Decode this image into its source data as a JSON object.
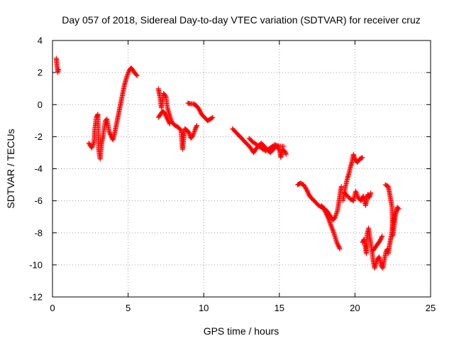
{
  "chart_data": {
    "type": "scatter",
    "title": "Day 057 of 2018, Sidereal Day-to-day VTEC variation (SDTVAR) for receiver cruz",
    "xlabel": "GPS time / hours",
    "ylabel": "SDTVAR / TECUs",
    "xlim": [
      0,
      25
    ],
    "ylim": [
      -12,
      4
    ],
    "grid": true,
    "legend": "none",
    "marker": "plus",
    "series_color": "#ff0000",
    "x_ticks": [
      0,
      5,
      10,
      15,
      20,
      25
    ],
    "x_tick_labels": [
      "0",
      "5",
      "10",
      "15",
      "20",
      "25"
    ],
    "y_ticks": [
      -12,
      -10,
      -8,
      -6,
      -4,
      -2,
      0,
      2,
      4
    ],
    "y_tick_labels": [
      "-12",
      "-10",
      "-8",
      "-6",
      "-4",
      "-2",
      "0",
      "2",
      "4"
    ],
    "segments": [
      [
        [
          0.25,
          2.9
        ],
        [
          0.3,
          2.4
        ],
        [
          0.35,
          2.0
        ],
        [
          0.4,
          2.2
        ]
      ],
      [
        [
          2.4,
          -2.4
        ],
        [
          2.6,
          -2.7
        ],
        [
          2.75,
          -2.3
        ],
        [
          2.8,
          -1.5
        ],
        [
          2.9,
          -0.8
        ],
        [
          3.0,
          -0.6
        ],
        [
          3.05,
          -2.8
        ],
        [
          3.15,
          -3.4
        ],
        [
          3.25,
          -2.4
        ],
        [
          3.35,
          -1.9
        ],
        [
          3.5,
          -1.0
        ],
        [
          3.6,
          -0.9
        ],
        [
          3.75,
          -1.7
        ],
        [
          3.9,
          -2.0
        ],
        [
          4.0,
          -2.2
        ],
        [
          4.15,
          -1.6
        ],
        [
          4.3,
          -0.9
        ],
        [
          4.45,
          -0.2
        ],
        [
          4.6,
          0.5
        ],
        [
          4.75,
          1.2
        ],
        [
          4.9,
          1.7
        ],
        [
          5.05,
          2.1
        ],
        [
          5.2,
          2.3
        ],
        [
          5.35,
          2.1
        ],
        [
          5.5,
          1.9
        ],
        [
          5.6,
          1.8
        ]
      ],
      [
        [
          7.0,
          1.0
        ],
        [
          7.1,
          0.5
        ],
        [
          7.2,
          -0.2
        ],
        [
          7.35,
          0.7
        ],
        [
          7.5,
          0.5
        ],
        [
          7.6,
          -0.2
        ],
        [
          7.75,
          -0.7
        ],
        [
          7.9,
          -1.1
        ],
        [
          8.1,
          -1.3
        ],
        [
          8.3,
          -1.4
        ],
        [
          8.5,
          -1.6
        ],
        [
          8.6,
          -2.8
        ],
        [
          8.75,
          -1.5
        ],
        [
          8.9,
          -1.6
        ],
        [
          9.05,
          -1.8
        ],
        [
          9.15,
          -2.1
        ],
        [
          9.3,
          -1.9
        ],
        [
          9.45,
          -1.5
        ],
        [
          9.55,
          -1.3
        ]
      ],
      [
        [
          7.0,
          -0.8
        ],
        [
          7.15,
          -0.6
        ],
        [
          7.3,
          -0.4
        ],
        [
          7.45,
          -0.6
        ],
        [
          7.6,
          -0.9
        ],
        [
          7.75,
          -1.2
        ]
      ],
      [
        [
          8.95,
          0.1
        ],
        [
          9.1,
          0.05
        ],
        [
          9.3,
          0.05
        ],
        [
          9.5,
          -0.05
        ],
        [
          9.7,
          -0.3
        ],
        [
          9.85,
          -0.6
        ],
        [
          10.05,
          -0.8
        ],
        [
          10.25,
          -1.0
        ],
        [
          10.45,
          -0.9
        ],
        [
          10.6,
          -0.8
        ]
      ],
      [
        [
          11.9,
          -1.5
        ],
        [
          12.2,
          -1.8
        ],
        [
          12.5,
          -2.1
        ],
        [
          12.8,
          -2.4
        ],
        [
          13.1,
          -2.7
        ],
        [
          13.3,
          -3.0
        ],
        [
          13.5,
          -2.7
        ],
        [
          13.8,
          -2.4
        ],
        [
          14.0,
          -2.6
        ],
        [
          14.2,
          -2.8
        ],
        [
          14.4,
          -3.0
        ],
        [
          14.6,
          -2.8
        ],
        [
          14.8,
          -2.6
        ],
        [
          15.0,
          -2.8
        ],
        [
          15.1,
          -3.3
        ],
        [
          15.2,
          -2.8
        ],
        [
          15.35,
          -2.9
        ],
        [
          15.45,
          -3.1
        ]
      ],
      [
        [
          13.0,
          -2.1
        ],
        [
          13.2,
          -2.3
        ],
        [
          13.5,
          -2.5
        ],
        [
          13.8,
          -2.7
        ],
        [
          14.1,
          -2.9
        ],
        [
          14.4,
          -2.7
        ],
        [
          14.7,
          -2.5
        ],
        [
          15.0,
          -2.6
        ],
        [
          15.3,
          -2.6
        ]
      ],
      [
        [
          16.2,
          -5.0
        ],
        [
          16.4,
          -4.9
        ],
        [
          16.6,
          -5.0
        ],
        [
          16.8,
          -5.3
        ],
        [
          17.0,
          -5.7
        ],
        [
          17.2,
          -5.9
        ],
        [
          17.4,
          -6.1
        ],
        [
          17.6,
          -6.3
        ],
        [
          17.8,
          -6.4
        ],
        [
          18.0,
          -6.5
        ],
        [
          18.2,
          -6.7
        ],
        [
          18.4,
          -7.0
        ],
        [
          18.55,
          -7.2
        ],
        [
          18.7,
          -7.0
        ],
        [
          18.85,
          -6.6
        ],
        [
          18.95,
          -6.0
        ],
        [
          19.05,
          -5.4
        ],
        [
          19.1,
          -5.1
        ]
      ],
      [
        [
          17.8,
          -6.3
        ],
        [
          18.0,
          -6.6
        ],
        [
          18.2,
          -7.0
        ],
        [
          18.4,
          -7.5
        ],
        [
          18.6,
          -8.0
        ],
        [
          18.8,
          -8.6
        ],
        [
          19.0,
          -9.0
        ]
      ],
      [
        [
          19.2,
          -6.0
        ],
        [
          19.35,
          -5.2
        ],
        [
          19.5,
          -4.6
        ],
        [
          19.6,
          -4.3
        ],
        [
          19.7,
          -3.9
        ],
        [
          19.8,
          -3.6
        ],
        [
          19.9,
          -3.1
        ],
        [
          20.0,
          -3.4
        ],
        [
          20.15,
          -3.6
        ],
        [
          20.3,
          -3.4
        ],
        [
          20.5,
          -3.3
        ]
      ],
      [
        [
          19.3,
          -5.5
        ],
        [
          19.5,
          -5.7
        ],
        [
          19.7,
          -5.9
        ],
        [
          19.9,
          -6.0
        ],
        [
          20.05,
          -5.4
        ],
        [
          20.2,
          -5.8
        ],
        [
          20.4,
          -6.0
        ],
        [
          20.55,
          -5.7
        ],
        [
          20.7,
          -6.3
        ],
        [
          20.85,
          -5.6
        ],
        [
          20.95,
          -5.8
        ],
        [
          21.05,
          -5.5
        ]
      ],
      [
        [
          20.5,
          -8.6
        ],
        [
          20.6,
          -8.4
        ],
        [
          20.7,
          -8.9
        ],
        [
          20.75,
          -9.3
        ],
        [
          20.8,
          -8.1
        ],
        [
          20.9,
          -7.7
        ],
        [
          21.0,
          -8.4
        ],
        [
          21.1,
          -9.0
        ],
        [
          21.2,
          -9.7
        ],
        [
          21.3,
          -10.2
        ],
        [
          21.45,
          -9.7
        ],
        [
          21.6,
          -9.5
        ],
        [
          21.75,
          -10.1
        ],
        [
          21.85,
          -10.2
        ],
        [
          21.95,
          -9.6
        ],
        [
          22.05,
          -9.2
        ],
        [
          22.15,
          -9.0
        ]
      ],
      [
        [
          21.2,
          -9.1
        ],
        [
          21.35,
          -8.9
        ],
        [
          21.5,
          -8.7
        ],
        [
          21.65,
          -8.5
        ],
        [
          21.8,
          -8.2
        ]
      ],
      [
        [
          22.0,
          -5.0
        ],
        [
          22.2,
          -5.1
        ],
        [
          22.3,
          -5.6
        ],
        [
          22.45,
          -6.4
        ],
        [
          22.5,
          -8.2
        ],
        [
          22.6,
          -7.5
        ],
        [
          22.7,
          -6.8
        ],
        [
          22.8,
          -6.4
        ],
        [
          22.9,
          -6.5
        ]
      ],
      [
        [
          22.2,
          -9.3
        ],
        [
          22.3,
          -8.7
        ],
        [
          22.4,
          -8.2
        ],
        [
          22.5,
          -7.5
        ],
        [
          22.6,
          -7.0
        ],
        [
          22.75,
          -6.6
        ],
        [
          22.85,
          -6.5
        ]
      ]
    ]
  }
}
